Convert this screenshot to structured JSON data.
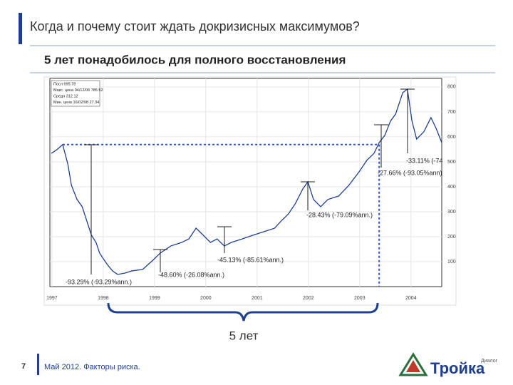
{
  "slide": {
    "title": "Когда и почему стоит ждать докризисных максимумов?",
    "subtitle": "5 лет понадобилось для полного восстановления",
    "brace_label": "5 лет",
    "page_number": "7",
    "footer": "Май 2012. Факторы риска.",
    "logo": "Тройка",
    "logo_sub": "Диалог"
  },
  "chart_data": {
    "type": "line",
    "legend": [
      "Посл 695.78",
      "Макс. цена 04/12/06 785.52",
      "Средн 312.12",
      "Мин. цена 16/02/98 27.34"
    ],
    "x": [
      1996.99,
      1997.1,
      1997.21,
      1997.31,
      1997.38,
      1997.49,
      1997.59,
      1997.68,
      1997.77,
      1997.86,
      1997.93,
      1998.07,
      1998.18,
      1998.28,
      1998.42,
      1998.56,
      1998.77,
      1998.97,
      1999.11,
      1999.32,
      1999.53,
      1999.67,
      1999.81,
      1999.95,
      2000.09,
      2000.22,
      2000.36,
      2000.5,
      2000.71,
      2000.92,
      2001.13,
      2001.34,
      2001.47,
      2001.61,
      2001.75,
      2001.89,
      2001.99,
      2002.1,
      2002.24,
      2002.38,
      2002.59,
      2002.79,
      2003.0,
      2003.14,
      2003.28,
      2003.38,
      2003.49,
      2003.6,
      2003.7,
      2003.84,
      2003.93,
      2004.02,
      2004.11,
      2004.25,
      2004.39,
      2004.49,
      2004.6
    ],
    "series": [
      {
        "color": "#1f3f8f",
        "values": [
          534,
          549,
          569,
          491,
          406,
          349,
          320,
          263,
          206,
          177,
          134,
          91,
          63,
          49,
          54,
          63,
          69,
          106,
          134,
          163,
          177,
          191,
          234,
          206,
          177,
          191,
          163,
          177,
          191,
          206,
          220,
          234,
          263,
          291,
          334,
          391,
          420,
          349,
          320,
          349,
          363,
          406,
          463,
          506,
          534,
          577,
          606,
          663,
          691,
          777,
          791,
          663,
          591,
          620,
          677,
          634,
          577
        ]
      }
    ],
    "reference": {
      "value": 569,
      "x": [
        1997.21,
        2003.38
      ]
    },
    "annotations": [
      "-93.29% (-93.29%ann.)",
      "-48.60% (-26.08%ann.)",
      "-45.13% (-85.61%ann.)",
      "-28.43% (-79.09%ann.)",
      "-27.66% (-93.05%ann)",
      "-33.11% (-74"
    ],
    "xlim": [
      1996.96,
      2004.6
    ],
    "xticks": [
      1997,
      1998,
      1999,
      2000,
      2001,
      2002,
      2003,
      2004
    ],
    "ylim": [
      0,
      834
    ],
    "yticks": [
      100,
      200,
      300,
      400,
      500,
      600,
      700,
      800
    ],
    "grid": true
  }
}
